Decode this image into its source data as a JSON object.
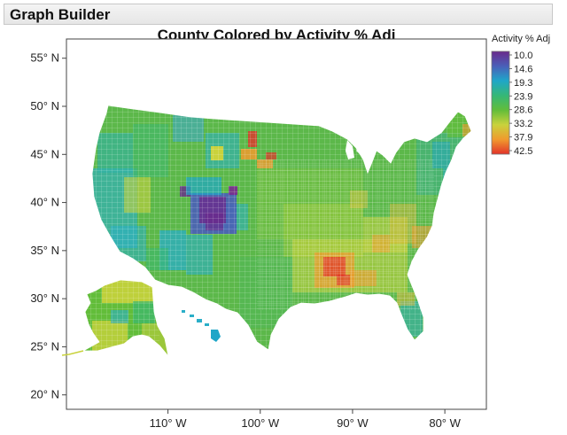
{
  "header": {
    "title": "Graph Builder"
  },
  "chart_data": {
    "type": "heatmap",
    "title": "County Colored by Activity % Adj",
    "x_axis": {
      "range": [
        -121,
        -75.5
      ],
      "ticks": [
        {
          "value": -110,
          "label": "110° W"
        },
        {
          "value": -100,
          "label": "100° W"
        },
        {
          "value": -90,
          "label": "90° W"
        },
        {
          "value": -80,
          "label": "80° W"
        }
      ]
    },
    "y_axis": {
      "range": [
        18.5,
        57
      ],
      "ticks": [
        {
          "value": 20,
          "label": "20° N"
        },
        {
          "value": 25,
          "label": "25° N"
        },
        {
          "value": 30,
          "label": "30° N"
        },
        {
          "value": 35,
          "label": "35° N"
        },
        {
          "value": 40,
          "label": "40° N"
        },
        {
          "value": 45,
          "label": "45° N"
        },
        {
          "value": 50,
          "label": "50° N"
        },
        {
          "value": 55,
          "label": "55° N"
        }
      ]
    },
    "legend": {
      "title": "Activity % Adj",
      "placement": "right",
      "stops": [
        {
          "value": "10.0",
          "color": "#6a2a8c"
        },
        {
          "value": "14.6",
          "color": "#4a5fb8"
        },
        {
          "value": "19.3",
          "color": "#1fa6c8"
        },
        {
          "value": "23.9",
          "color": "#35b777"
        },
        {
          "value": "28.6",
          "color": "#62bd3a"
        },
        {
          "value": "33.2",
          "color": "#c9d23c"
        },
        {
          "value": "37.9",
          "color": "#f09a2e"
        },
        {
          "value": "42.5",
          "color": "#e2332a"
        }
      ]
    }
  }
}
